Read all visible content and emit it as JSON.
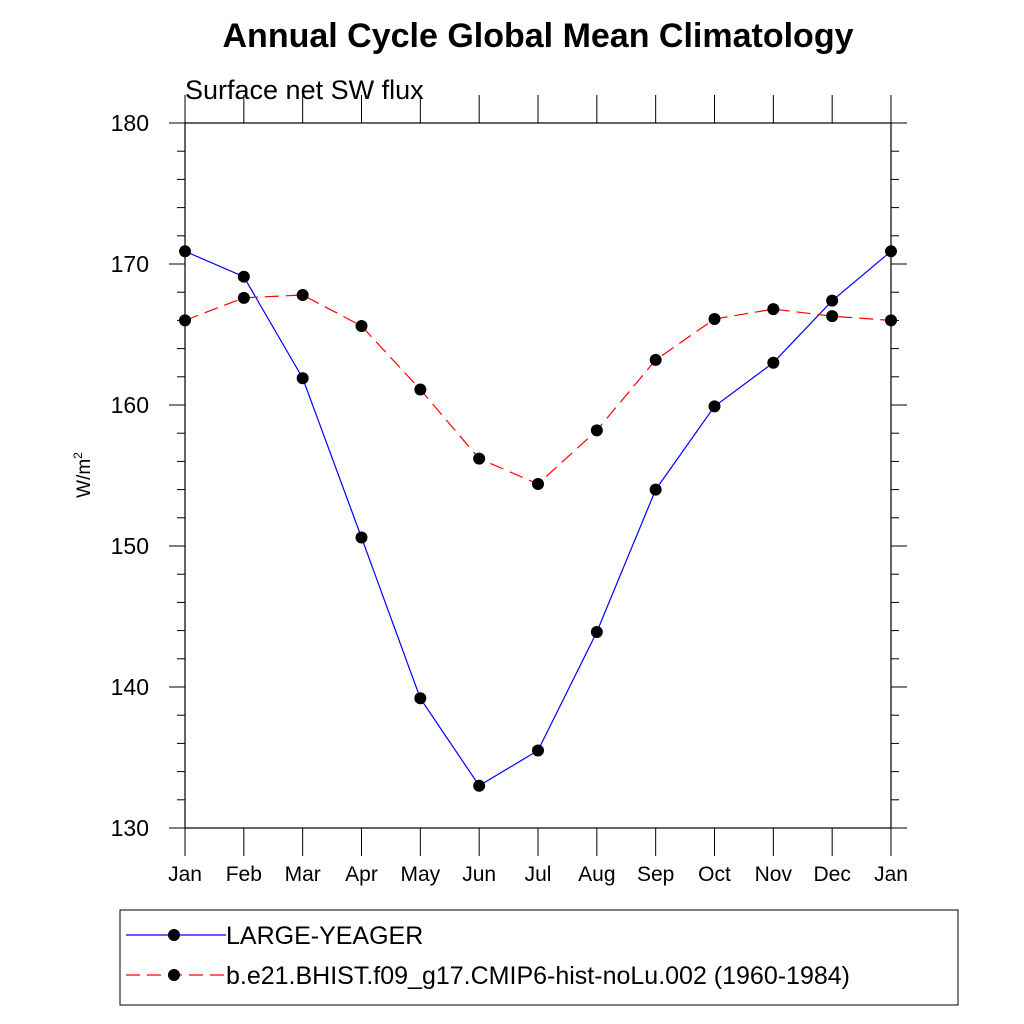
{
  "chart_data": {
    "type": "line",
    "title": "Annual Cycle Global Mean Climatology",
    "subtitle": "Surface net SW flux",
    "ylabel": "W/m",
    "ylabel_superscript": "2",
    "xlabel": "",
    "ylim": [
      130,
      180
    ],
    "yticks": [
      130,
      140,
      150,
      160,
      170,
      180
    ],
    "categories": [
      "Jan",
      "Feb",
      "Mar",
      "Apr",
      "May",
      "Jun",
      "Jul",
      "Aug",
      "Sep",
      "Oct",
      "Nov",
      "Dec",
      "Jan"
    ],
    "grid": false,
    "legend_position": "bottom",
    "series": [
      {
        "name": "LARGE-YEAGER",
        "color": "#0000ff",
        "line_style": "solid",
        "marker": "filled-circle",
        "values": [
          170.9,
          169.1,
          161.9,
          150.6,
          139.2,
          133.0,
          135.5,
          143.9,
          154.0,
          159.9,
          163.0,
          167.4,
          170.9
        ]
      },
      {
        "name": "b.e21.BHIST.f09_g17.CMIP6-hist-noLu.002 (1960-1984)",
        "color": "#ff0000",
        "line_style": "dashed",
        "marker": "filled-circle",
        "values": [
          166.0,
          167.6,
          167.8,
          165.6,
          161.1,
          156.2,
          154.4,
          158.2,
          163.2,
          166.1,
          166.8,
          166.3,
          166.0
        ]
      }
    ]
  }
}
